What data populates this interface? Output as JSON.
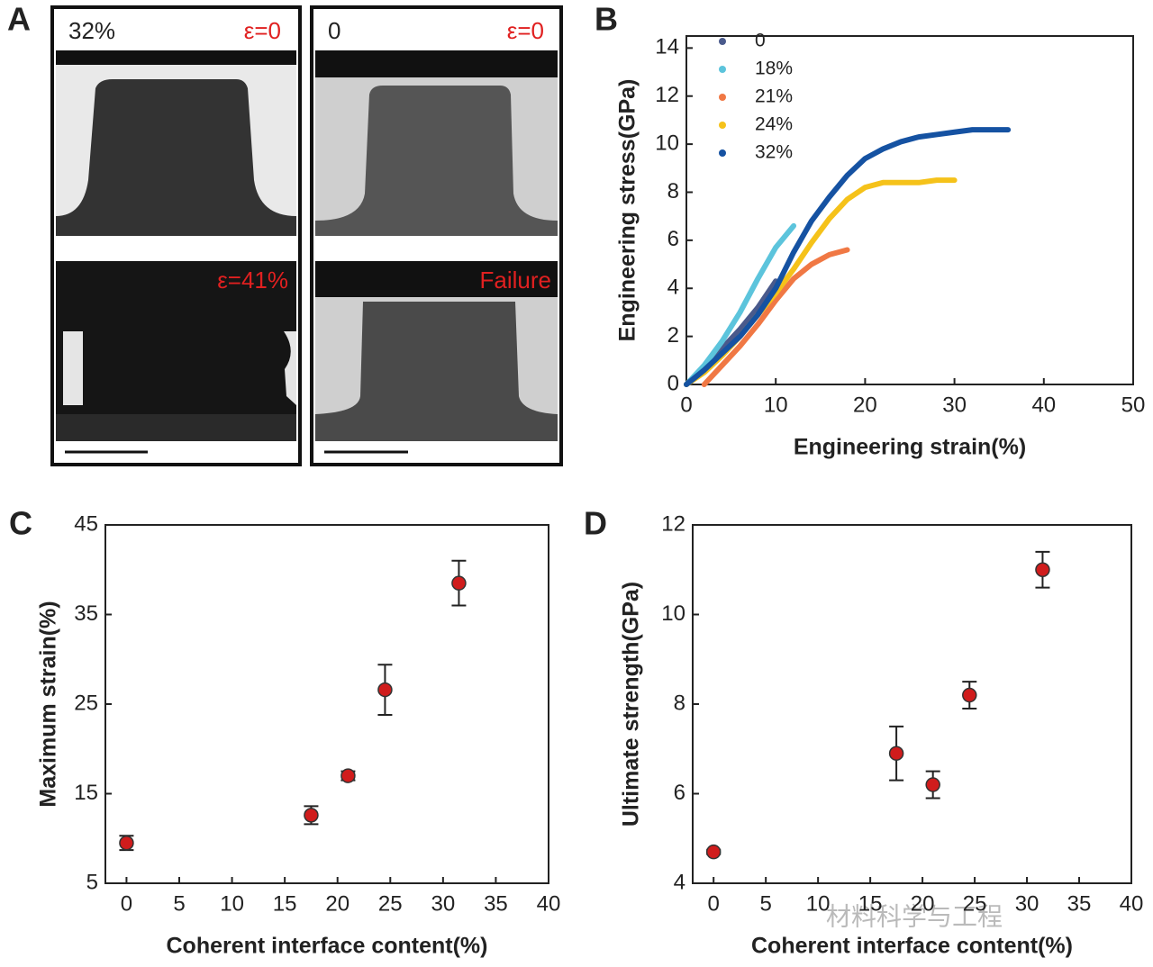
{
  "panel_a": {
    "label": "A",
    "texts": [
      "32%",
      "ε=0",
      "0",
      "ε=0",
      "ε=41%",
      "Failure"
    ]
  },
  "watermark": "材料科学与工程",
  "chart_data": [
    {
      "type": "line",
      "panel_label": "B",
      "xlabel": "Engineering strain(%)",
      "ylabel": "Engineering stress(GPa)",
      "x": [
        0,
        2,
        4,
        6,
        8,
        10,
        12,
        14,
        16,
        18,
        20,
        22,
        24,
        26,
        28,
        30,
        32,
        34,
        36
      ],
      "series": [
        {
          "name": "0",
          "color": "#4a5a8c",
          "values": [
            0,
            0.7,
            1.5,
            2.3,
            3.2,
            4.3,
            null,
            null,
            null,
            null,
            null,
            null,
            null,
            null,
            null,
            null,
            null,
            null,
            null
          ]
        },
        {
          "name": "18%",
          "color": "#5cc4dc",
          "values": [
            0,
            0.8,
            1.8,
            3.0,
            4.4,
            5.7,
            6.6,
            null,
            null,
            null,
            null,
            null,
            null,
            null,
            null,
            null,
            null,
            null,
            null
          ]
        },
        {
          "name": "21%",
          "color": "#f07844",
          "values": [
            null,
            0,
            0.8,
            1.6,
            2.5,
            3.5,
            4.4,
            5.0,
            5.4,
            5.6,
            null,
            null,
            null,
            null,
            null,
            null,
            null,
            null,
            null
          ]
        },
        {
          "name": "24%",
          "color": "#f5c21a",
          "values": [
            0,
            0.5,
            1.2,
            2.0,
            2.9,
            3.8,
            4.8,
            5.9,
            6.9,
            7.7,
            8.2,
            8.4,
            8.4,
            8.4,
            8.5,
            8.5,
            null,
            null,
            null
          ]
        },
        {
          "name": "32%",
          "color": "#1552a2",
          "values": [
            0,
            0.6,
            1.3,
            2.0,
            2.9,
            4.0,
            5.5,
            6.8,
            7.8,
            8.7,
            9.4,
            9.8,
            10.1,
            10.3,
            10.4,
            10.5,
            10.6,
            10.6,
            10.6
          ]
        }
      ],
      "xlim": [
        0,
        50
      ],
      "xticks": [
        0,
        10,
        20,
        30,
        40,
        50
      ],
      "ylim": [
        0,
        14.5
      ],
      "yticks": [
        0,
        2,
        4,
        6,
        8,
        10,
        12,
        14
      ],
      "legend": "upper left"
    },
    {
      "type": "scatter",
      "panel_label": "C",
      "xlabel": "Coherent interface content(%)",
      "ylabel": "Maximum strain(%)",
      "x": [
        0,
        17.5,
        21,
        24.5,
        31.5
      ],
      "values": [
        9.5,
        12.6,
        17,
        26.6,
        38.5
      ],
      "errors": [
        0.8,
        1,
        0.5,
        2.8,
        2.5
      ],
      "color": "#d01c1c",
      "xlim": [
        -2,
        40
      ],
      "xticks": [
        0,
        5,
        10,
        15,
        20,
        25,
        30,
        35,
        40
      ],
      "ylim": [
        5,
        45
      ],
      "yticks": [
        5,
        15,
        25,
        35,
        45
      ]
    },
    {
      "type": "scatter",
      "panel_label": "D",
      "xlabel": "Coherent interface content(%)",
      "ylabel": "Ultimate strength(GPa)",
      "x": [
        0,
        17.5,
        21,
        24.5,
        31.5
      ],
      "values": [
        4.7,
        6.9,
        6.2,
        8.2,
        11.0
      ],
      "errors": [
        0.05,
        0.6,
        0.3,
        0.3,
        0.4
      ],
      "color": "#d01c1c",
      "xlim": [
        -2,
        40
      ],
      "xticks": [
        0,
        5,
        10,
        15,
        20,
        25,
        30,
        35,
        40
      ],
      "ylim": [
        4,
        12
      ],
      "yticks": [
        4,
        6,
        8,
        10,
        12
      ]
    }
  ]
}
